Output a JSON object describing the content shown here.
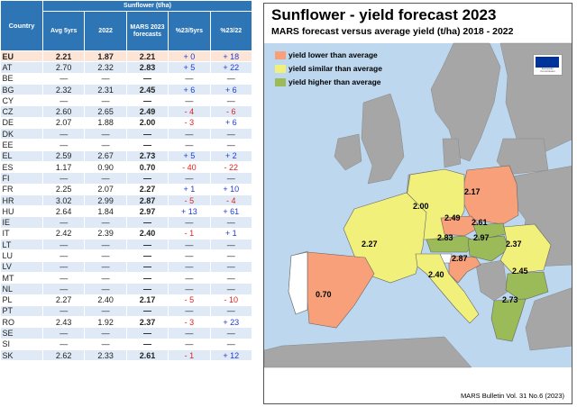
{
  "table": {
    "group_header": "Sunflower (t/ha)",
    "headers": [
      "Country",
      "Avg 5yrs",
      "2022",
      "MARS 2023 forecasts",
      "%23/5yrs",
      "%23/22"
    ],
    "rows": [
      {
        "country": "EU",
        "avg": "2.21",
        "y2022": "1.87",
        "forecast": "2.21",
        "pct5": "+ 0",
        "pct22": "+ 18"
      },
      {
        "country": "AT",
        "avg": "2.70",
        "y2022": "2.32",
        "forecast": "2.83",
        "pct5": "+ 5",
        "pct22": "+ 22"
      },
      {
        "country": "BE",
        "avg": "—",
        "y2022": "—",
        "forecast": "—",
        "pct5": "—",
        "pct22": "—"
      },
      {
        "country": "BG",
        "avg": "2.32",
        "y2022": "2.31",
        "forecast": "2.45",
        "pct5": "+ 6",
        "pct22": "+ 6"
      },
      {
        "country": "CY",
        "avg": "—",
        "y2022": "—",
        "forecast": "—",
        "pct5": "—",
        "pct22": "—"
      },
      {
        "country": "CZ",
        "avg": "2.60",
        "y2022": "2.65",
        "forecast": "2.49",
        "pct5": "- 4",
        "pct22": "- 6"
      },
      {
        "country": "DE",
        "avg": "2.07",
        "y2022": "1.88",
        "forecast": "2.00",
        "pct5": "- 3",
        "pct22": "+ 6"
      },
      {
        "country": "DK",
        "avg": "—",
        "y2022": "—",
        "forecast": "—",
        "pct5": "—",
        "pct22": "—"
      },
      {
        "country": "EE",
        "avg": "—",
        "y2022": "—",
        "forecast": "—",
        "pct5": "—",
        "pct22": "—"
      },
      {
        "country": "EL",
        "avg": "2.59",
        "y2022": "2.67",
        "forecast": "2.73",
        "pct5": "+ 5",
        "pct22": "+ 2"
      },
      {
        "country": "ES",
        "avg": "1.17",
        "y2022": "0.90",
        "forecast": "0.70",
        "pct5": "- 40",
        "pct22": "- 22"
      },
      {
        "country": "FI",
        "avg": "—",
        "y2022": "—",
        "forecast": "—",
        "pct5": "—",
        "pct22": "—"
      },
      {
        "country": "FR",
        "avg": "2.25",
        "y2022": "2.07",
        "forecast": "2.27",
        "pct5": "+ 1",
        "pct22": "+ 10"
      },
      {
        "country": "HR",
        "avg": "3.02",
        "y2022": "2.99",
        "forecast": "2.87",
        "pct5": "- 5",
        "pct22": "- 4"
      },
      {
        "country": "HU",
        "avg": "2.64",
        "y2022": "1.84",
        "forecast": "2.97",
        "pct5": "+ 13",
        "pct22": "+ 61"
      },
      {
        "country": "IE",
        "avg": "—",
        "y2022": "—",
        "forecast": "—",
        "pct5": "—",
        "pct22": "—"
      },
      {
        "country": "IT",
        "avg": "2.42",
        "y2022": "2.39",
        "forecast": "2.40",
        "pct5": "- 1",
        "pct22": "+ 1"
      },
      {
        "country": "LT",
        "avg": "—",
        "y2022": "—",
        "forecast": "—",
        "pct5": "—",
        "pct22": "—"
      },
      {
        "country": "LU",
        "avg": "—",
        "y2022": "—",
        "forecast": "—",
        "pct5": "—",
        "pct22": "—"
      },
      {
        "country": "LV",
        "avg": "—",
        "y2022": "—",
        "forecast": "—",
        "pct5": "—",
        "pct22": "—"
      },
      {
        "country": "MT",
        "avg": "—",
        "y2022": "—",
        "forecast": "—",
        "pct5": "—",
        "pct22": "—"
      },
      {
        "country": "NL",
        "avg": "—",
        "y2022": "—",
        "forecast": "—",
        "pct5": "—",
        "pct22": "—"
      },
      {
        "country": "PL",
        "avg": "2.27",
        "y2022": "2.40",
        "forecast": "2.17",
        "pct5": "- 5",
        "pct22": "- 10"
      },
      {
        "country": "PT",
        "avg": "—",
        "y2022": "—",
        "forecast": "—",
        "pct5": "—",
        "pct22": "—"
      },
      {
        "country": "RO",
        "avg": "2.43",
        "y2022": "1.92",
        "forecast": "2.37",
        "pct5": "- 3",
        "pct22": "+ 23"
      },
      {
        "country": "SE",
        "avg": "—",
        "y2022": "—",
        "forecast": "—",
        "pct5": "—",
        "pct22": "—"
      },
      {
        "country": "SI",
        "avg": "—",
        "y2022": "—",
        "forecast": "—",
        "pct5": "—",
        "pct22": "—"
      },
      {
        "country": "SK",
        "avg": "2.62",
        "y2022": "2.33",
        "forecast": "2.61",
        "pct5": "- 1",
        "pct22": "+ 12"
      }
    ]
  },
  "map": {
    "title": "Sunflower - yield forecast 2023",
    "subtitle": "MARS forecast versus average yield (t/ha) 2018 - 2022",
    "legend": [
      {
        "label": "yield lower than average",
        "color": "#f8a07a"
      },
      {
        "label": "yield similar than average",
        "color": "#f0f07a"
      },
      {
        "label": "yield higher than average",
        "color": "#9bbb59"
      }
    ],
    "values": [
      {
        "label": "2.17",
        "country": "PL"
      },
      {
        "label": "2.00",
        "country": "DE"
      },
      {
        "label": "2.49",
        "country": "CZ"
      },
      {
        "label": "2.61",
        "country": "SK"
      },
      {
        "label": "2.83",
        "country": "AT"
      },
      {
        "label": "2.97",
        "country": "HU"
      },
      {
        "label": "2.37",
        "country": "RO"
      },
      {
        "label": "2.27",
        "country": "FR"
      },
      {
        "label": "2.87",
        "country": "HR"
      },
      {
        "label": "2.40",
        "country": "IT"
      },
      {
        "label": "2.45",
        "country": "BG"
      },
      {
        "label": "0.70",
        "country": "ES"
      },
      {
        "label": "2.73",
        "country": "EL"
      }
    ],
    "footer": "MARS Bulletin Vol. 31 No.6 (2023)",
    "sea_color": "#bcd7ee",
    "nonmember_color": "#a6a6a6"
  }
}
